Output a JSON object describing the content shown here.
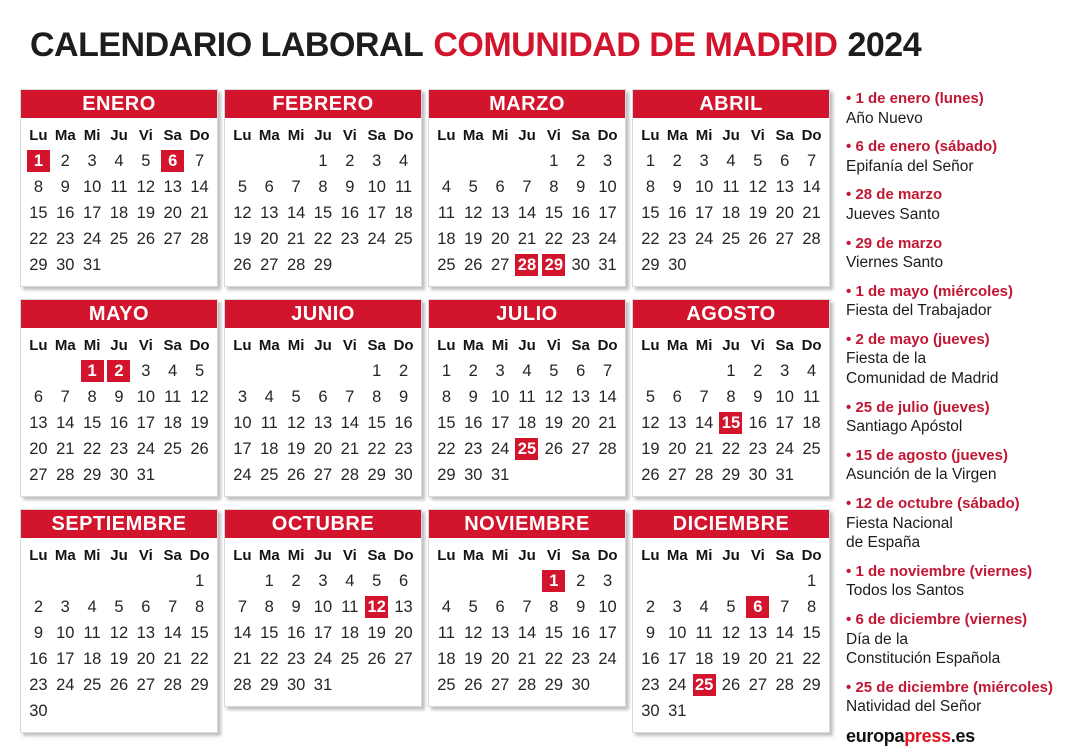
{
  "title": {
    "part_black": "CALENDARIO LABORAL",
    "part_red": "COMUNIDAD DE MADRID",
    "part_year": "2024"
  },
  "weekday_headers": [
    "Lu",
    "Ma",
    "Mi",
    "Ju",
    "Vi",
    "Sa",
    "Do"
  ],
  "months": [
    {
      "name": "ENERO",
      "first_dow": 0,
      "days": 31,
      "holidays": [
        1,
        6
      ]
    },
    {
      "name": "FEBRERO",
      "first_dow": 3,
      "days": 29,
      "holidays": []
    },
    {
      "name": "MARZO",
      "first_dow": 4,
      "days": 31,
      "holidays": [
        28,
        29
      ]
    },
    {
      "name": "ABRIL",
      "first_dow": 0,
      "days": 30,
      "holidays": []
    },
    {
      "name": "MAYO",
      "first_dow": 2,
      "days": 31,
      "holidays": [
        1,
        2
      ]
    },
    {
      "name": "JUNIO",
      "first_dow": 5,
      "days": 30,
      "holidays": []
    },
    {
      "name": "JULIO",
      "first_dow": 0,
      "days": 31,
      "holidays": [
        25
      ]
    },
    {
      "name": "AGOSTO",
      "first_dow": 3,
      "days": 31,
      "holidays": [
        15
      ]
    },
    {
      "name": "SEPTIEMBRE",
      "first_dow": 6,
      "days": 30,
      "holidays": []
    },
    {
      "name": "OCTUBRE",
      "first_dow": 1,
      "days": 31,
      "holidays": [
        12
      ]
    },
    {
      "name": "NOVIEMBRE",
      "first_dow": 4,
      "days": 30,
      "holidays": [
        1
      ]
    },
    {
      "name": "DICIEMBRE",
      "first_dow": 6,
      "days": 31,
      "holidays": [
        6,
        25
      ]
    }
  ],
  "sidebar": {
    "bullet": "•",
    "holidays": [
      {
        "date": "1 de enero (lunes)",
        "name_lines": [
          "Año Nuevo"
        ]
      },
      {
        "date": "6 de enero (sábado)",
        "name_lines": [
          "Epifanía del Señor"
        ]
      },
      {
        "date": "28 de marzo",
        "name_lines": [
          "Jueves Santo"
        ]
      },
      {
        "date": "29 de marzo",
        "name_lines": [
          "Viernes Santo"
        ]
      },
      {
        "date": "1 de mayo (miércoles)",
        "name_lines": [
          "Fiesta del Trabajador"
        ]
      },
      {
        "date": "2 de mayo (jueves)",
        "name_lines": [
          "Fiesta de la",
          "Comunidad de Madrid"
        ]
      },
      {
        "date": "25 de julio (jueves)",
        "name_lines": [
          "Santiago Apóstol"
        ]
      },
      {
        "date": "15 de agosto (jueves)",
        "name_lines": [
          "Asunción de la Virgen"
        ]
      },
      {
        "date": "12 de octubre (sábado)",
        "name_lines": [
          "Fiesta Nacional",
          "de España"
        ]
      },
      {
        "date": "1 de noviembre (viernes)",
        "name_lines": [
          "Todos los Santos"
        ]
      },
      {
        "date": "6 de diciembre (viernes)",
        "name_lines": [
          "Día de la",
          "Constitución Española"
        ]
      },
      {
        "date": "25 de diciembre (miércoles)",
        "name_lines": [
          "Natividad del Señor"
        ]
      }
    ]
  },
  "logo": {
    "black_1": "europa",
    "red": "press",
    "black_2": ".es"
  },
  "colors": {
    "red": "#d2142c",
    "sidebar_red": "#c11733",
    "logo_red": "#e0101c",
    "text": "#1d1d1b"
  }
}
